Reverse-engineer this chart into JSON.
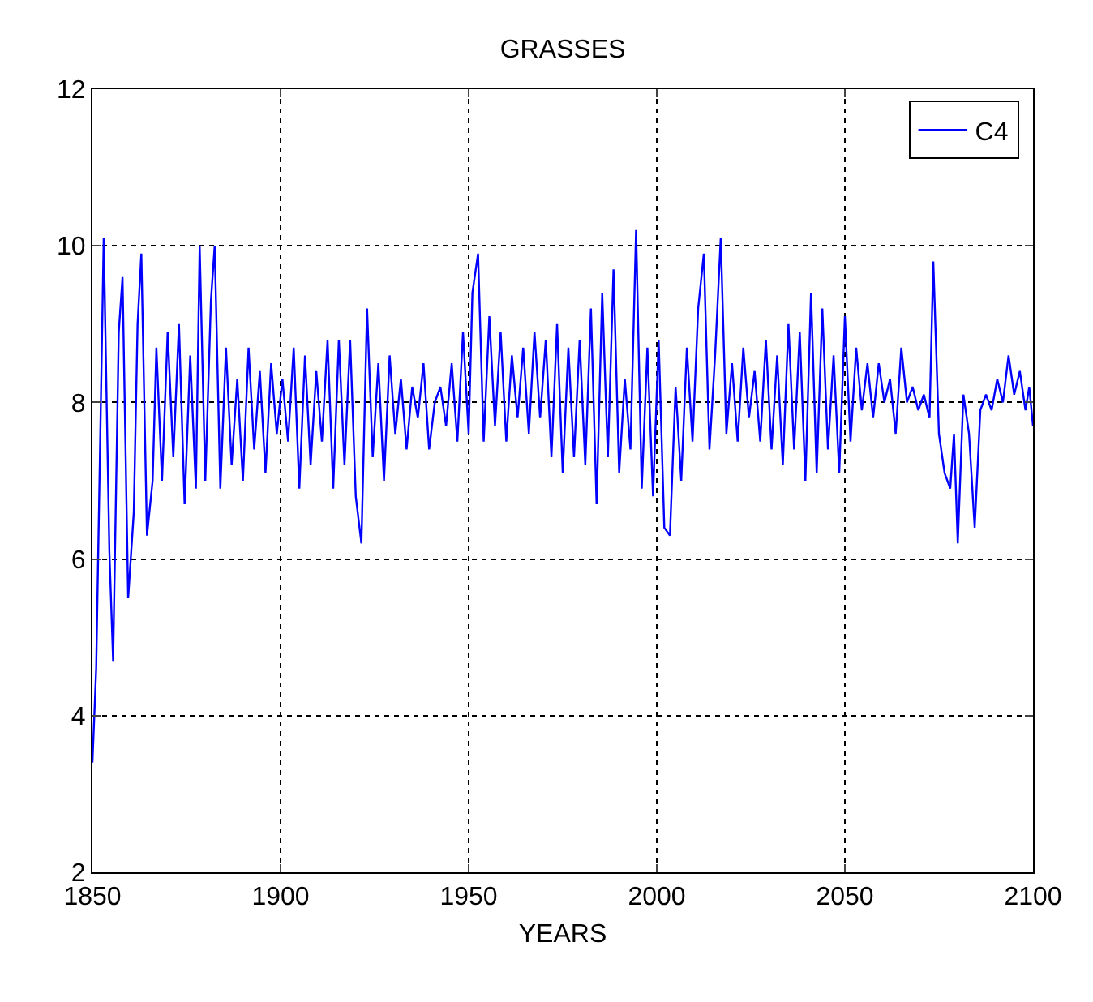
{
  "chart_data": {
    "type": "line",
    "title": "GRASSES",
    "xlabel": "YEARS",
    "xlim": [
      1850,
      2100
    ],
    "xticks": [
      1850,
      1900,
      1950,
      2000,
      2050,
      2100
    ],
    "ylim": [
      2,
      12
    ],
    "yticks": [
      2,
      4,
      6,
      8,
      10,
      12
    ],
    "grid": true,
    "legend": "top right",
    "marker": "none",
    "line_style": "solid",
    "series": [
      {
        "name": "C4",
        "color": "#0000ff",
        "x": [
          1850,
          1851,
          1852.5,
          1853,
          1854.5,
          1855.5,
          1857,
          1858,
          1859.5,
          1861,
          1862,
          1863,
          1864.5,
          1866,
          1867,
          1868.5,
          1870,
          1871.5,
          1873,
          1874.5,
          1876,
          1877.5,
          1878.5,
          1880,
          1881.5,
          1882.5,
          1884,
          1885.5,
          1887,
          1888.5,
          1890,
          1891.5,
          1893,
          1894.5,
          1896,
          1897.5,
          1899,
          1900.5,
          1902,
          1903.5,
          1905,
          1906.5,
          1908,
          1909.5,
          1911,
          1912.5,
          1914,
          1915.5,
          1917,
          1918.5,
          1920,
          1921.5,
          1923,
          1924.5,
          1926,
          1927.5,
          1929,
          1930.5,
          1932,
          1933.5,
          1935,
          1936.5,
          1938,
          1939.5,
          1941,
          1942.5,
          1944,
          1945.5,
          1947,
          1948.5,
          1950,
          1951,
          1952.5,
          1954,
          1955.5,
          1957,
          1958.5,
          1960,
          1961.5,
          1963,
          1964.5,
          1966,
          1967.5,
          1969,
          1970.5,
          1972,
          1973.5,
          1975,
          1976.5,
          1978,
          1979.5,
          1981,
          1982.5,
          1984,
          1985.5,
          1987,
          1988.5,
          1990,
          1991.5,
          1993,
          1994.5,
          1996,
          1997.5,
          1999,
          2000.5,
          2002,
          2003.5,
          2005,
          2006.5,
          2008,
          2009.5,
          2011,
          2012.5,
          2014,
          2015.5,
          2017,
          2018.5,
          2020,
          2021.5,
          2023,
          2024.5,
          2026,
          2027.5,
          2029,
          2030.5,
          2032,
          2033.5,
          2035,
          2036.5,
          2038,
          2039.5,
          2041,
          2042.5,
          2044,
          2045.5,
          2047,
          2048.5,
          2050,
          2051.5,
          2053,
          2054.5,
          2056,
          2057.5,
          2059,
          2060.5,
          2062,
          2063.5,
          2065,
          2066.5,
          2068,
          2069.5,
          2071,
          2072.5,
          2073.5,
          2075,
          2076.5,
          2078,
          2079,
          2080,
          2081.5,
          2083,
          2084.5,
          2086,
          2087.5,
          2089,
          2090.5,
          2092,
          2093.5,
          2095,
          2096.5,
          2098,
          2099,
          2100
        ],
        "values": [
          3.4,
          4.6,
          8.7,
          10.1,
          6.1,
          4.7,
          8.9,
          9.6,
          5.5,
          6.6,
          9.0,
          9.9,
          6.3,
          7.0,
          8.7,
          7.0,
          8.9,
          7.3,
          9.0,
          6.7,
          8.6,
          6.9,
          10.0,
          7.0,
          9.3,
          10.0,
          6.9,
          8.7,
          7.2,
          8.3,
          7.0,
          8.7,
          7.4,
          8.4,
          7.1,
          8.5,
          7.6,
          8.3,
          7.5,
          8.7,
          6.9,
          8.6,
          7.2,
          8.4,
          7.5,
          8.8,
          6.9,
          8.8,
          7.2,
          8.8,
          6.8,
          6.2,
          9.2,
          7.3,
          8.5,
          7.0,
          8.6,
          7.6,
          8.3,
          7.4,
          8.2,
          7.8,
          8.5,
          7.4,
          8.0,
          8.2,
          7.7,
          8.5,
          7.5,
          8.9,
          7.6,
          9.4,
          9.9,
          7.5,
          9.1,
          7.7,
          8.9,
          7.5,
          8.6,
          7.8,
          8.7,
          7.6,
          8.9,
          7.8,
          8.8,
          7.3,
          9.0,
          7.1,
          8.7,
          7.3,
          8.8,
          7.2,
          9.2,
          6.7,
          9.4,
          7.3,
          9.7,
          7.1,
          8.3,
          7.4,
          10.2,
          6.9,
          8.7,
          6.8,
          8.8,
          6.4,
          6.3,
          8.2,
          7.0,
          8.7,
          7.5,
          9.2,
          9.9,
          7.4,
          8.6,
          10.1,
          7.6,
          8.5,
          7.5,
          8.7,
          7.8,
          8.4,
          7.5,
          8.8,
          7.4,
          8.6,
          7.2,
          9.0,
          7.4,
          8.9,
          7.0,
          9.4,
          7.1,
          9.2,
          7.4,
          8.6,
          7.1,
          9.1,
          7.5,
          8.7,
          7.9,
          8.5,
          7.8,
          8.5,
          8.0,
          8.3,
          7.6,
          8.7,
          8.0,
          8.2,
          7.9,
          8.1,
          7.8,
          9.8,
          7.6,
          7.1,
          6.9,
          7.6,
          6.2,
          8.1,
          7.6,
          6.4,
          7.9,
          8.1,
          7.9,
          8.3,
          8.0,
          8.6,
          8.1,
          8.4,
          7.9,
          8.2,
          7.7
        ]
      }
    ]
  }
}
